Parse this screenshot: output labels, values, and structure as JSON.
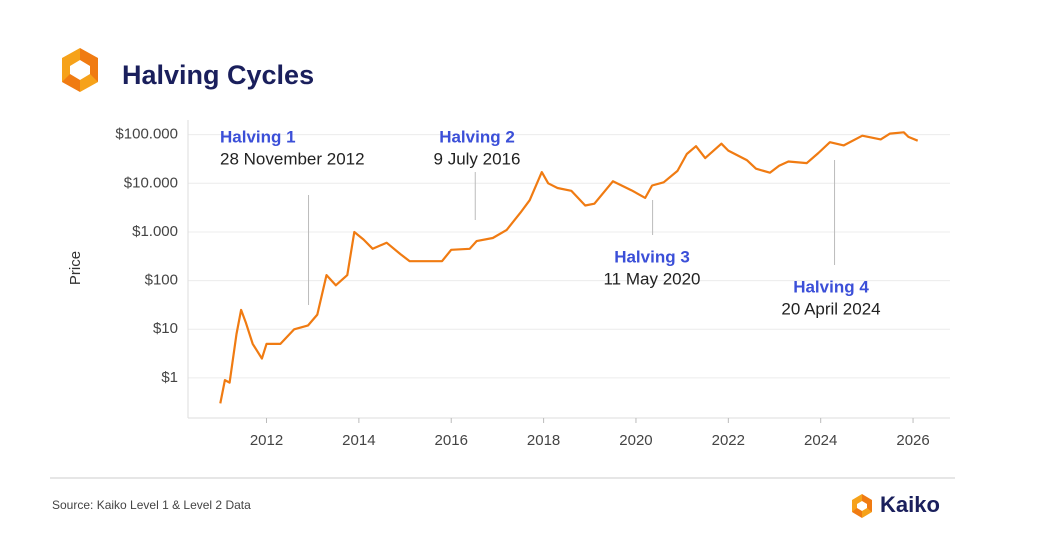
{
  "chart_data": {
    "type": "line",
    "title": "Halving Cycles",
    "ylabel": "Price",
    "log_scale": true,
    "grid": true,
    "color": "#f07b12",
    "x": [
      2011.0,
      2011.1,
      2011.2,
      2011.35,
      2011.45,
      2011.55,
      2011.7,
      2011.9,
      2012.0,
      2012.3,
      2012.6,
      2012.9,
      2013.1,
      2013.3,
      2013.5,
      2013.75,
      2013.9,
      2014.1,
      2014.3,
      2014.6,
      2014.9,
      2015.1,
      2015.5,
      2015.8,
      2016.0,
      2016.4,
      2016.55,
      2016.9,
      2017.2,
      2017.5,
      2017.7,
      2017.96,
      2018.1,
      2018.3,
      2018.6,
      2018.9,
      2019.1,
      2019.5,
      2019.9,
      2020.2,
      2020.35,
      2020.6,
      2020.9,
      2021.1,
      2021.3,
      2021.5,
      2021.85,
      2022.0,
      2022.4,
      2022.6,
      2022.9,
      2023.1,
      2023.3,
      2023.7,
      2023.95,
      2024.2,
      2024.5,
      2024.9,
      2025.3,
      2025.5,
      2025.8,
      2025.9,
      2026.1
    ],
    "values": [
      0.3,
      0.9,
      0.8,
      8,
      25,
      14,
      5,
      2.5,
      5,
      5,
      10,
      12,
      20,
      130,
      80,
      130,
      1000,
      700,
      450,
      600,
      350,
      250,
      250,
      250,
      430,
      450,
      650,
      750,
      1100,
      2500,
      4500,
      17000,
      10000,
      8000,
      7000,
      3500,
      3800,
      11000,
      7200,
      5000,
      9000,
      10500,
      18000,
      40000,
      58000,
      33000,
      65000,
      47000,
      30000,
      20000,
      16500,
      23000,
      28000,
      26000,
      42000,
      70000,
      60000,
      95000,
      80000,
      105000,
      112000,
      90000,
      75000
    ],
    "xlim": [
      2010.3,
      2026.8
    ],
    "xticks": [
      2012,
      2014,
      2016,
      2018,
      2020,
      2022,
      2024,
      2026
    ],
    "ylim": [
      0.15,
      200000
    ],
    "yticks": [
      {
        "value": 1,
        "label": "$1"
      },
      {
        "value": 10,
        "label": "$10"
      },
      {
        "value": 100,
        "label": "$100"
      },
      {
        "value": 1000,
        "label": "$1.000"
      },
      {
        "value": 10000,
        "label": "$10.000"
      },
      {
        "value": 100000,
        "label": "$100.000"
      }
    ],
    "annotations": [
      {
        "label": "Halving 1",
        "text": "28 November 2012",
        "x": 2012.91
      },
      {
        "label": "Halving 2",
        "text": "9 July 2016",
        "x": 2016.52
      },
      {
        "label": "Halving 3",
        "text": "11 May 2020",
        "x": 2020.36
      },
      {
        "label": "Halving 4",
        "text": "20 April 2024",
        "x": 2024.3
      }
    ]
  },
  "source": "Source: Kaiko Level 1 & Level 2 Data",
  "brand": "Kaiko"
}
